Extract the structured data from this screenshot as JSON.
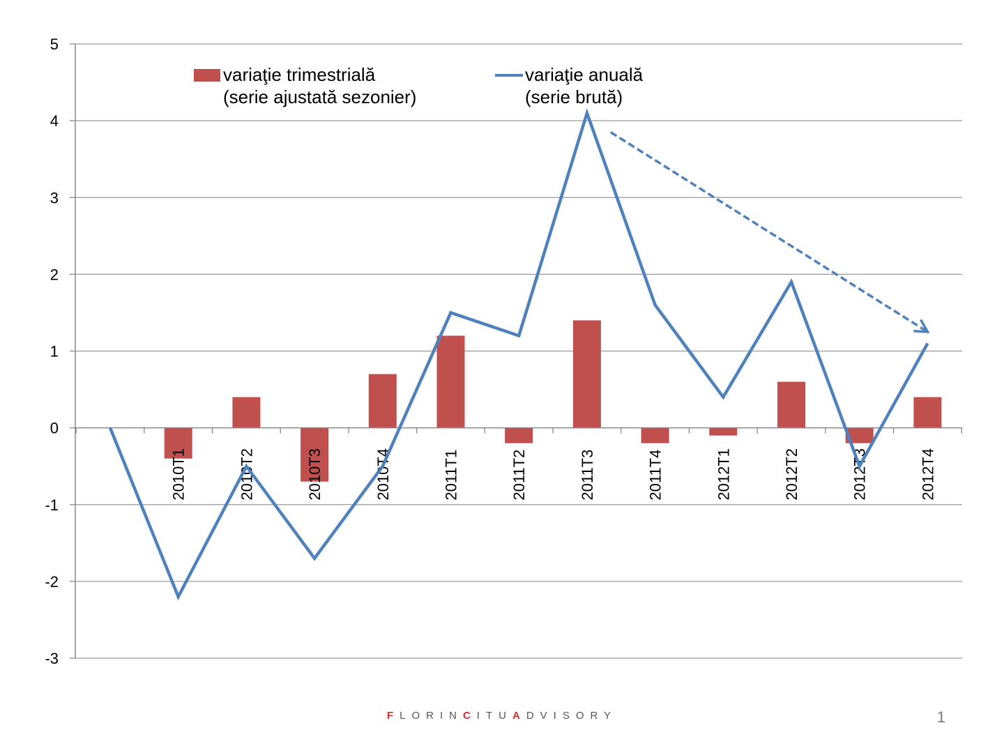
{
  "chart_data": {
    "type": "bar",
    "categories": [
      "",
      "2010T1",
      "2010T2",
      "2010T3",
      "2010T4",
      "2011T1",
      "2011T2",
      "2011T3",
      "2011T4",
      "2012T1",
      "2012T2",
      "2012T3",
      "2012T4"
    ],
    "series": [
      {
        "name": "variaţie trimestrială (serie ajustată sezonier)",
        "legend_lines": [
          "variaţie trimestrială",
          "(serie ajustată sezonier)"
        ],
        "type": "bar",
        "color": "#c0504d",
        "values": [
          null,
          -0.4,
          0.4,
          -0.7,
          0.7,
          1.2,
          -0.2,
          1.4,
          -0.2,
          -0.1,
          0.6,
          -0.2,
          0.4
        ]
      },
      {
        "name": "variaţie anuală (serie brută)",
        "legend_lines": [
          "variaţie anuală",
          "(serie brută)"
        ],
        "type": "line",
        "color": "#4f81bd",
        "values": [
          0,
          -2.2,
          -0.5,
          -1.7,
          -0.5,
          1.5,
          1.2,
          4.1,
          1.6,
          0.4,
          1.9,
          -0.5,
          1.1
        ]
      }
    ],
    "trend_arrow": {
      "from": {
        "x": "2011T3",
        "y": 3.85
      },
      "to": {
        "x": "2012T4",
        "y": 1.25
      },
      "style": "dashed"
    },
    "y_ticks": [
      5,
      4,
      3,
      2,
      1,
      0,
      -1,
      -2,
      -3
    ],
    "ylim": [
      -3,
      5
    ],
    "grid": true,
    "title": "",
    "xlabel": "",
    "ylabel": ""
  },
  "footer": {
    "brand": {
      "part1": "F",
      "part2": "LORIN",
      "part3": "C",
      "part4": "ITU",
      "part5": "A",
      "part6": "DVISORY"
    },
    "page_number": "1"
  }
}
